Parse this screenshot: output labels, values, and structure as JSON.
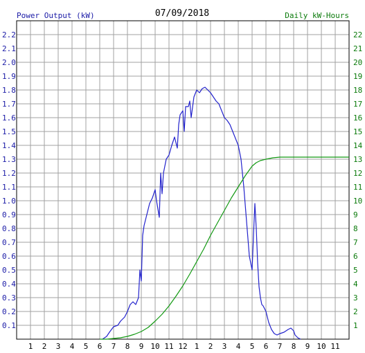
{
  "chart_data": {
    "type": "line",
    "title": "07/09/2018",
    "left_axis_label": "Power Output (kW)",
    "right_axis_label": "Daily kW-Hours",
    "colors": {
      "power": "#2222cc",
      "energy": "#119911",
      "left_axis_text": "#1a1aa6",
      "right_axis_text": "#0a7a0a",
      "grid": "#a0a0a0"
    },
    "x_ticks": [
      "1",
      "2",
      "3",
      "4",
      "5",
      "6",
      "7",
      "8",
      "9",
      "10",
      "11",
      "12",
      "1",
      "2",
      "3",
      "4",
      "5",
      "6",
      "7",
      "8",
      "9",
      "10",
      "11"
    ],
    "x_range_hours": [
      0,
      24
    ],
    "y_left_range": [
      0,
      2.3
    ],
    "y_left_ticks": [
      "0.1",
      "0.2",
      "0.3",
      "0.4",
      "0.5",
      "0.6",
      "0.7",
      "0.8",
      "0.9",
      "1.0",
      "1.1",
      "1.2",
      "1.3",
      "1.4",
      "1.5",
      "1.6",
      "1.7",
      "1.8",
      "1.9",
      "2.0",
      "2.1",
      "2.2"
    ],
    "y_right_range": [
      0,
      23
    ],
    "y_right_ticks": [
      "1",
      "2",
      "3",
      "4",
      "5",
      "6",
      "7",
      "8",
      "9",
      "10",
      "11",
      "12",
      "13",
      "14",
      "15",
      "16",
      "17",
      "18",
      "19",
      "20",
      "21",
      "22"
    ],
    "grid": true,
    "series": [
      {
        "axis": "left",
        "x": [
          6.2,
          6.5,
          6.7,
          7.0,
          7.3,
          7.5,
          7.8,
          8.0,
          8.2,
          8.4,
          8.6,
          8.8,
          8.9,
          9.0,
          9.1,
          9.2,
          9.4,
          9.6,
          9.8,
          10.0,
          10.1,
          10.3,
          10.4,
          10.5,
          10.6,
          10.7,
          10.8,
          11.0,
          11.2,
          11.4,
          11.6,
          11.7,
          11.8,
          12.0,
          12.1,
          12.2,
          12.4,
          12.5,
          12.6,
          12.8,
          13.0,
          13.2,
          13.4,
          13.6,
          13.8,
          14.0,
          14.2,
          14.4,
          14.6,
          14.8,
          15.0,
          15.2,
          15.4,
          15.6,
          15.8,
          16.0,
          16.2,
          16.4,
          16.6,
          16.8,
          17.0,
          17.1,
          17.2,
          17.3,
          17.4,
          17.5,
          17.6,
          17.7,
          17.8,
          17.9,
          18.0,
          18.2,
          18.4,
          18.6,
          18.8,
          19.0,
          19.3,
          19.6,
          19.8,
          20.0,
          20.1,
          20.3,
          20.5
        ],
        "values": [
          0.0,
          0.02,
          0.05,
          0.09,
          0.1,
          0.13,
          0.16,
          0.2,
          0.25,
          0.27,
          0.25,
          0.3,
          0.5,
          0.42,
          0.75,
          0.82,
          0.9,
          0.98,
          1.02,
          1.08,
          1.0,
          0.88,
          1.2,
          1.05,
          1.2,
          1.25,
          1.3,
          1.33,
          1.4,
          1.46,
          1.38,
          1.55,
          1.62,
          1.65,
          1.5,
          1.68,
          1.68,
          1.72,
          1.6,
          1.75,
          1.8,
          1.78,
          1.81,
          1.82,
          1.8,
          1.78,
          1.75,
          1.72,
          1.7,
          1.65,
          1.6,
          1.58,
          1.55,
          1.5,
          1.45,
          1.4,
          1.3,
          1.1,
          0.85,
          0.6,
          0.5,
          0.75,
          0.98,
          0.8,
          0.55,
          0.38,
          0.3,
          0.25,
          0.24,
          0.22,
          0.2,
          0.12,
          0.07,
          0.04,
          0.03,
          0.04,
          0.05,
          0.07,
          0.08,
          0.06,
          0.03,
          0.01,
          0.0
        ]
      },
      {
        "axis": "right",
        "x": [
          6.0,
          6.5,
          7.0,
          7.5,
          8.0,
          8.5,
          9.0,
          9.5,
          10.0,
          10.5,
          11.0,
          11.5,
          12.0,
          12.5,
          13.0,
          13.5,
          14.0,
          14.5,
          15.0,
          15.5,
          16.0,
          16.5,
          17.0,
          17.3,
          17.6,
          18.0,
          18.5,
          19.0,
          20.0,
          21.0,
          22.0,
          23.0,
          24.0
        ],
        "values": [
          0.0,
          0.0,
          0.05,
          0.1,
          0.2,
          0.35,
          0.55,
          0.85,
          1.3,
          1.8,
          2.4,
          3.1,
          3.85,
          4.7,
          5.6,
          6.5,
          7.5,
          8.4,
          9.3,
          10.2,
          11.0,
          11.8,
          12.5,
          12.75,
          12.9,
          13.0,
          13.1,
          13.15,
          13.15,
          13.15,
          13.15,
          13.15,
          13.15
        ]
      }
    ]
  }
}
